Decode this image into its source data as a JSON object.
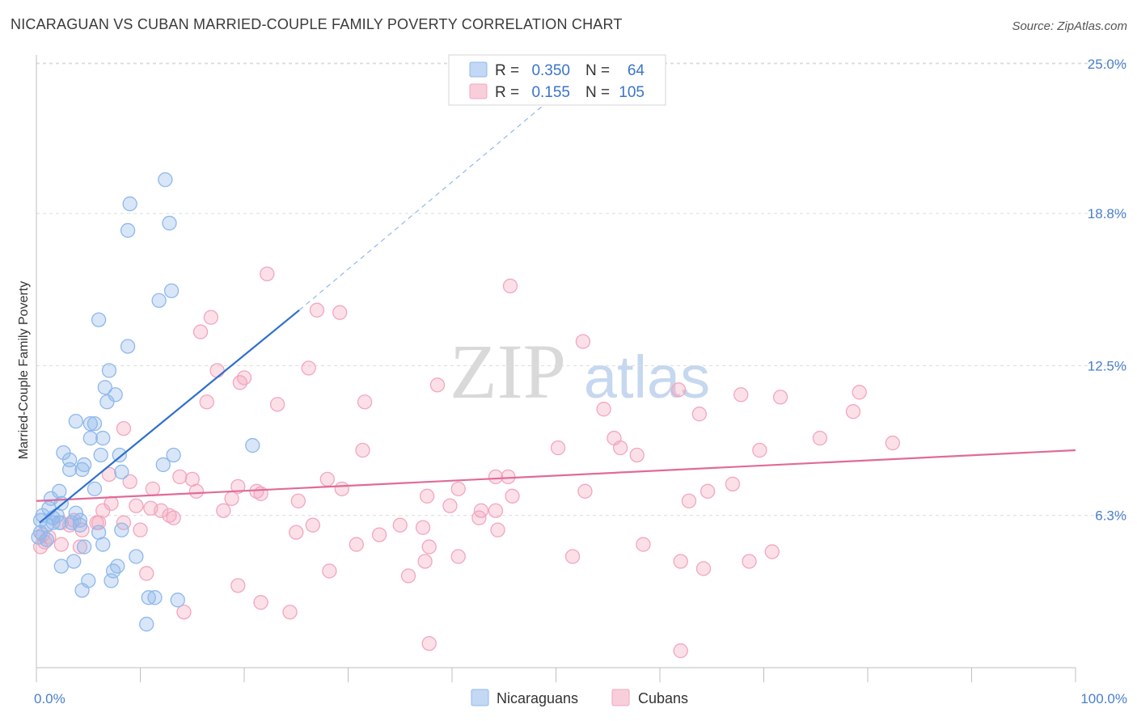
{
  "chart_data": {
    "type": "scatter",
    "title": "NICARAGUAN VS CUBAN MARRIED-COUPLE FAMILY POVERTY CORRELATION CHART",
    "source": "Source: ZipAtlas.com",
    "xlabel": "",
    "ylabel": "Married-Couple Family Poverty",
    "xlim": [
      0,
      100
    ],
    "ylim": [
      0,
      26.5
    ],
    "x_tick_labels": {
      "min": "0.0%",
      "max": "100.0%"
    },
    "y_ticks": [
      {
        "value": 25.0,
        "label": "25.0%"
      },
      {
        "value": 18.8,
        "label": "18.8%"
      },
      {
        "value": 12.5,
        "label": "12.5%"
      },
      {
        "value": 6.3,
        "label": "6.3%"
      }
    ],
    "watermark": {
      "zip": "ZIP",
      "atlas": "atlas"
    },
    "legend": [
      {
        "r_label": "R =",
        "r_value": "0.350",
        "n_label": "N =",
        "n_value": "64",
        "color": "#8fb8ec"
      },
      {
        "r_label": "R =",
        "r_value": "0.155",
        "n_label": "N =",
        "n_value": "105",
        "color": "#f3a6bd"
      }
    ],
    "series": [
      {
        "name": "Nicaraguans",
        "color": "#8fb8ec",
        "line_color": "#2d6fce",
        "trend": {
          "x0": 0.3,
          "y0": 6.0,
          "x1": 25.3,
          "y1": 14.8,
          "dash_to_x": 53.0,
          "dash_to_y": 24.8
        },
        "points": [
          [
            12.4,
            20.2
          ],
          [
            9.0,
            19.2
          ],
          [
            12.8,
            18.4
          ],
          [
            8.8,
            18.1
          ],
          [
            13.0,
            15.6
          ],
          [
            11.8,
            15.2
          ],
          [
            6.0,
            14.4
          ],
          [
            8.8,
            13.3
          ],
          [
            7.0,
            12.3
          ],
          [
            6.6,
            11.6
          ],
          [
            7.6,
            11.3
          ],
          [
            6.8,
            11.0
          ],
          [
            3.8,
            10.2
          ],
          [
            5.6,
            10.1
          ],
          [
            5.2,
            10.1
          ],
          [
            6.4,
            9.5
          ],
          [
            5.2,
            9.5
          ],
          [
            20.8,
            9.2
          ],
          [
            2.6,
            8.9
          ],
          [
            6.2,
            8.8
          ],
          [
            8.0,
            8.8
          ],
          [
            13.2,
            8.8
          ],
          [
            3.2,
            8.6
          ],
          [
            4.6,
            8.4
          ],
          [
            12.2,
            8.4
          ],
          [
            3.2,
            8.2
          ],
          [
            4.4,
            8.2
          ],
          [
            8.2,
            8.1
          ],
          [
            5.6,
            7.4
          ],
          [
            2.2,
            7.3
          ],
          [
            1.4,
            7.0
          ],
          [
            2.4,
            6.8
          ],
          [
            1.2,
            6.6
          ],
          [
            3.8,
            6.4
          ],
          [
            0.6,
            6.3
          ],
          [
            2.0,
            6.3
          ],
          [
            1.6,
            6.2
          ],
          [
            4.2,
            6.1
          ],
          [
            0.4,
            6.1
          ],
          [
            3.4,
            6.0
          ],
          [
            1.6,
            6.0
          ],
          [
            2.2,
            6.0
          ],
          [
            1.0,
            5.9
          ],
          [
            4.2,
            5.9
          ],
          [
            8.2,
            5.7
          ],
          [
            0.4,
            5.6
          ],
          [
            6.0,
            5.6
          ],
          [
            0.2,
            5.4
          ],
          [
            1.0,
            5.3
          ],
          [
            6.4,
            5.1
          ],
          [
            4.6,
            5.0
          ],
          [
            9.6,
            4.6
          ],
          [
            3.6,
            4.4
          ],
          [
            2.4,
            4.2
          ],
          [
            7.8,
            4.2
          ],
          [
            7.4,
            4.0
          ],
          [
            5.0,
            3.6
          ],
          [
            7.2,
            3.6
          ],
          [
            4.4,
            3.2
          ],
          [
            10.8,
            2.9
          ],
          [
            11.4,
            2.9
          ],
          [
            13.6,
            2.8
          ],
          [
            10.6,
            1.8
          ]
        ]
      },
      {
        "name": "Cubans",
        "color": "#f3a6bd",
        "line_color": "#e06b97",
        "trend": {
          "x0": 0.0,
          "y0": 6.9,
          "x1": 100.0,
          "y1": 9.0
        },
        "points": [
          [
            22.2,
            16.3
          ],
          [
            45.6,
            15.8
          ],
          [
            27.0,
            14.8
          ],
          [
            29.2,
            14.7
          ],
          [
            16.8,
            14.5
          ],
          [
            15.8,
            13.9
          ],
          [
            52.6,
            13.5
          ],
          [
            17.4,
            12.3
          ],
          [
            26.2,
            12.4
          ],
          [
            20.0,
            12.0
          ],
          [
            19.6,
            11.8
          ],
          [
            38.6,
            11.7
          ],
          [
            61.8,
            11.5
          ],
          [
            79.2,
            11.4
          ],
          [
            67.8,
            11.3
          ],
          [
            71.6,
            11.2
          ],
          [
            16.4,
            11.0
          ],
          [
            23.2,
            10.9
          ],
          [
            31.6,
            11.0
          ],
          [
            54.6,
            10.7
          ],
          [
            63.8,
            10.5
          ],
          [
            78.6,
            10.6
          ],
          [
            8.4,
            9.9
          ],
          [
            55.6,
            9.5
          ],
          [
            75.4,
            9.5
          ],
          [
            82.4,
            9.3
          ],
          [
            50.2,
            9.1
          ],
          [
            56.2,
            9.1
          ],
          [
            31.4,
            9.0
          ],
          [
            69.6,
            9.0
          ],
          [
            57.8,
            8.8
          ],
          [
            7.0,
            8.0
          ],
          [
            13.8,
            7.9
          ],
          [
            15.0,
            7.8
          ],
          [
            28.0,
            7.8
          ],
          [
            44.2,
            7.9
          ],
          [
            45.4,
            7.9
          ],
          [
            9.0,
            7.7
          ],
          [
            19.4,
            7.5
          ],
          [
            67.0,
            7.6
          ],
          [
            11.2,
            7.4
          ],
          [
            15.4,
            7.3
          ],
          [
            21.2,
            7.3
          ],
          [
            29.4,
            7.4
          ],
          [
            40.6,
            7.4
          ],
          [
            52.8,
            7.3
          ],
          [
            64.6,
            7.3
          ],
          [
            21.6,
            7.2
          ],
          [
            37.6,
            7.1
          ],
          [
            45.8,
            7.1
          ],
          [
            18.8,
            7.0
          ],
          [
            25.2,
            6.9
          ],
          [
            62.8,
            6.9
          ],
          [
            7.2,
            6.8
          ],
          [
            9.6,
            6.7
          ],
          [
            39.8,
            6.7
          ],
          [
            11.0,
            6.6
          ],
          [
            6.4,
            6.5
          ],
          [
            12.0,
            6.5
          ],
          [
            18.0,
            6.5
          ],
          [
            42.8,
            6.5
          ],
          [
            44.2,
            6.5
          ],
          [
            12.8,
            6.3
          ],
          [
            13.2,
            6.2
          ],
          [
            42.6,
            6.2
          ],
          [
            3.6,
            6.1
          ],
          [
            6.0,
            6.0
          ],
          [
            2.4,
            6.0
          ],
          [
            5.8,
            6.0
          ],
          [
            8.4,
            6.0
          ],
          [
            3.2,
            5.9
          ],
          [
            26.6,
            5.9
          ],
          [
            35.0,
            5.9
          ],
          [
            37.2,
            5.8
          ],
          [
            4.4,
            5.7
          ],
          [
            10.0,
            5.7
          ],
          [
            44.4,
            5.7
          ],
          [
            25.0,
            5.6
          ],
          [
            0.6,
            5.5
          ],
          [
            1.2,
            5.4
          ],
          [
            33.0,
            5.5
          ],
          [
            0.8,
            5.2
          ],
          [
            2.4,
            5.1
          ],
          [
            0.4,
            5.0
          ],
          [
            30.8,
            5.1
          ],
          [
            58.4,
            5.1
          ],
          [
            4.2,
            5.0
          ],
          [
            37.8,
            5.0
          ],
          [
            70.8,
            4.8
          ],
          [
            40.6,
            4.6
          ],
          [
            51.6,
            4.6
          ],
          [
            37.4,
            4.4
          ],
          [
            62.0,
            4.4
          ],
          [
            68.6,
            4.4
          ],
          [
            10.6,
            3.9
          ],
          [
            28.2,
            4.0
          ],
          [
            64.2,
            4.1
          ],
          [
            35.8,
            3.8
          ],
          [
            19.4,
            3.4
          ],
          [
            21.6,
            2.7
          ],
          [
            24.4,
            2.3
          ],
          [
            14.2,
            2.3
          ],
          [
            37.8,
            1.0
          ],
          [
            62.0,
            0.7
          ]
        ]
      }
    ]
  }
}
